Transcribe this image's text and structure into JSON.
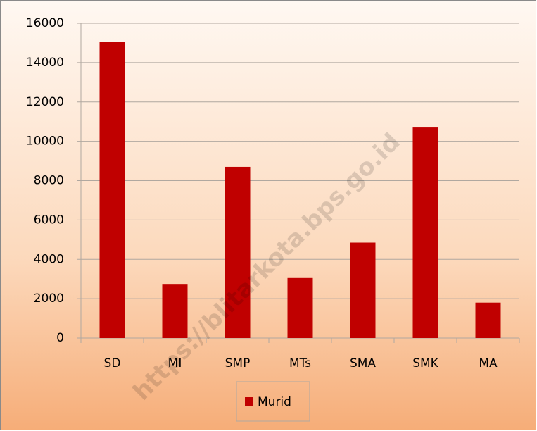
{
  "chart_data": {
    "type": "bar",
    "categories": [
      "SD",
      "MI",
      "SMP",
      "MTs",
      "SMA",
      "SMK",
      "MA"
    ],
    "series": [
      {
        "name": "Murid",
        "color": "#c00000",
        "values": [
          15050,
          2750,
          8700,
          3050,
          4850,
          10700,
          1800
        ]
      }
    ],
    "ylim": [
      0,
      16000
    ],
    "yticks": [
      0,
      2000,
      4000,
      6000,
      8000,
      10000,
      12000,
      14000,
      16000
    ],
    "grid": true,
    "legend": "bottom",
    "watermark": "https://blitarkota.bps.go.id"
  }
}
